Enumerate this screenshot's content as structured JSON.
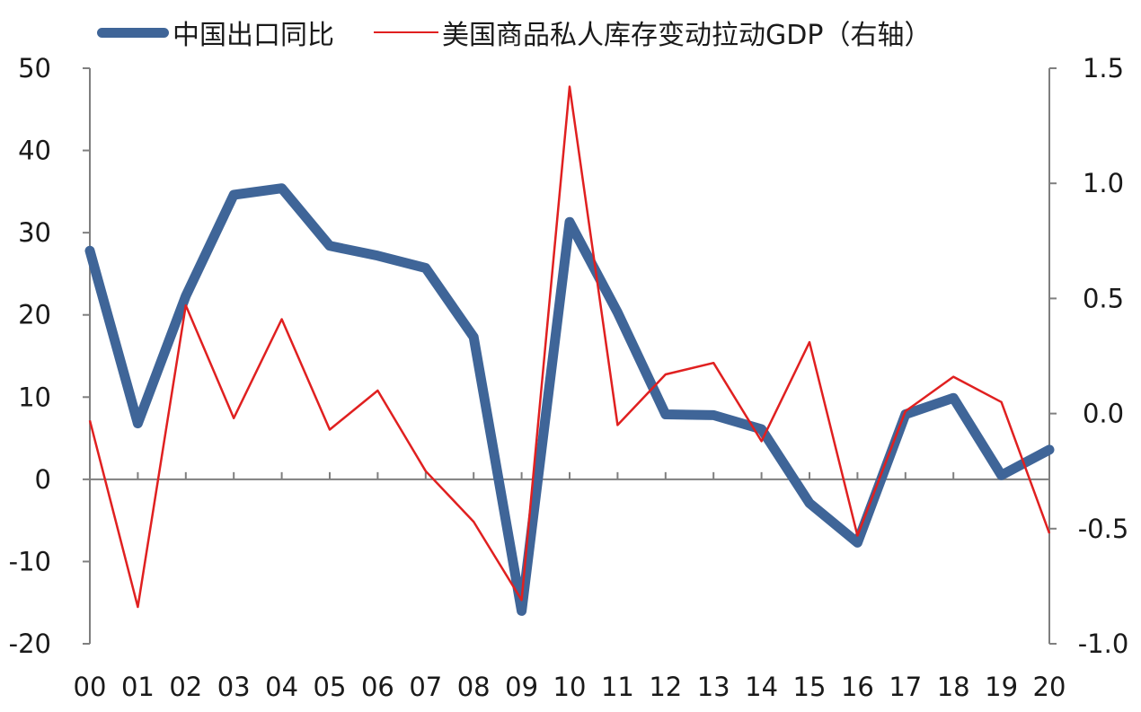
{
  "chart_data": {
    "type": "line",
    "title": "",
    "xlabel": "",
    "ylabel": "",
    "legend_position": "top",
    "grid": false,
    "categories": [
      "00",
      "01",
      "02",
      "03",
      "04",
      "05",
      "06",
      "07",
      "08",
      "09",
      "10",
      "11",
      "12",
      "13",
      "14",
      "15",
      "16",
      "17",
      "18",
      "19",
      "20"
    ],
    "y_left": {
      "range": [
        -20,
        50
      ],
      "ticks": [
        "50",
        "40",
        "30",
        "20",
        "10",
        "0",
        "-10",
        "-20"
      ]
    },
    "y_right": {
      "range": [
        -1.0,
        1.5
      ],
      "ticks": [
        "1.5",
        "1.0",
        "0.5",
        "0.0",
        "-0.5",
        "-1.0"
      ]
    },
    "series": [
      {
        "name": "中国出口同比",
        "axis": "left",
        "color": "#3f6598",
        "values": [
          27.8,
          6.8,
          22.3,
          34.6,
          35.4,
          28.4,
          27.2,
          25.7,
          17.3,
          -16.0,
          31.3,
          20.3,
          7.9,
          7.8,
          6.1,
          -2.9,
          -7.7,
          7.9,
          9.9,
          0.5,
          3.6
        ]
      },
      {
        "name": "美国商品私人库存变动拉动GDP（右轴）",
        "axis": "right",
        "color": "#e02020",
        "values": [
          -0.03,
          -0.84,
          0.47,
          -0.02,
          0.41,
          -0.07,
          0.1,
          -0.25,
          -0.47,
          -0.81,
          1.42,
          -0.05,
          0.17,
          0.22,
          -0.12,
          0.31,
          -0.53,
          0.01,
          0.16,
          0.05,
          -0.52
        ]
      }
    ]
  }
}
